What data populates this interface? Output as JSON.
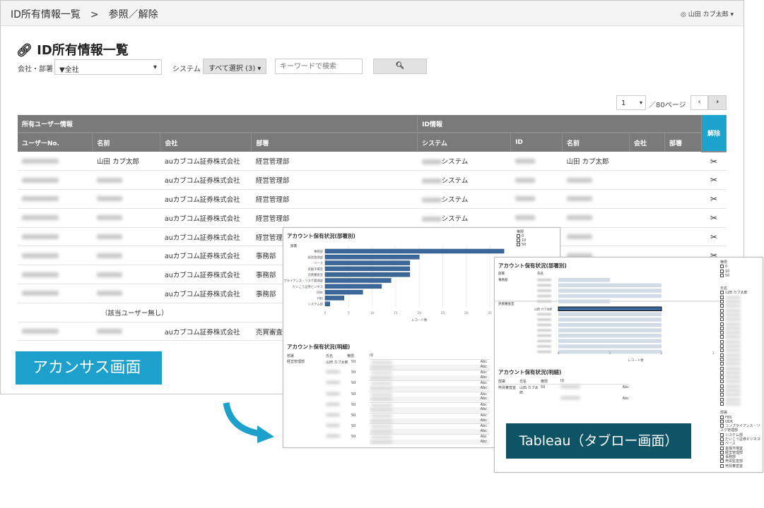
{
  "header": {
    "breadcrumb": [
      "ID所有情報一覧",
      ">",
      "参照／解除"
    ],
    "user": "山田 カブ太郎"
  },
  "page": {
    "title": "ID所有情報一覧"
  },
  "filters": {
    "company_label": "会社・部署",
    "company_value": "▼全社",
    "system_label": "システム",
    "system_value": "すべて選択 (3)",
    "keyword_placeholder": "キーワードで検索"
  },
  "pagination": {
    "page": "1",
    "total": "／80ページ"
  },
  "table": {
    "group_headers": [
      "所有ユーザー情報",
      "ID情報"
    ],
    "delete_header": "解除",
    "columns": [
      "ユーザーNo.",
      "名前",
      "会社",
      "部署",
      "システム",
      "ID",
      "名前",
      "会社",
      "部署"
    ],
    "rows": [
      {
        "name": "山田 カブ太郎",
        "company": "auカブコム証券株式会社",
        "dept": "経営管理部",
        "system": "システム",
        "id_name": "山田 カブ太郎"
      },
      {
        "name": "",
        "company": "auカブコム証券株式会社",
        "dept": "経営管理部",
        "system": "システム",
        "id_name": ""
      },
      {
        "name": "",
        "company": "auカブコム証券株式会社",
        "dept": "経営管理部",
        "system": "システム",
        "id_name": ""
      },
      {
        "name": "",
        "company": "auカブコム証券株式会社",
        "dept": "経営管理部",
        "system": "システム",
        "id_name": ""
      },
      {
        "name": "",
        "company": "auカブコム証券株式会社",
        "dept": "経営管理部",
        "system": "",
        "id_name": ""
      },
      {
        "name": "",
        "company": "auカブコム証券株式会社",
        "dept": "事務部",
        "system": "",
        "id_name": ""
      },
      {
        "name": "",
        "company": "auカブコム証券株式会社",
        "dept": "事務部",
        "system": "",
        "id_name": ""
      },
      {
        "name": "",
        "company": "auカブコム証券株式会社",
        "dept": "事務部",
        "system": "",
        "id_name": ""
      },
      {
        "empty": "（該当ユーザー無し）"
      },
      {
        "name": "",
        "company": "auカブコム証券株式会社",
        "dept": "売買審査室",
        "system": "",
        "id_name": ""
      }
    ]
  },
  "labels": {
    "acanthus": "アカンサス画面",
    "tableau": "Tableau（タブロー画面）"
  },
  "colors": {
    "accent": "#1da1cc",
    "tableau_label": "#0f5366",
    "bar": "#3a689a",
    "bar_light": "#d2dbe6"
  },
  "tableau1": {
    "chart_title": "アカウント保有状況(部署別)",
    "detail_title": "アカウント保有状況(明細)",
    "detail_headers": [
      "部署",
      "氏名",
      "権限",
      "ID"
    ],
    "detail_dept": "経営管理部",
    "detail_name": "山田 カブ太郎",
    "detail_role": "50",
    "detail_value": "Abc",
    "legend_title": "権限",
    "legend": [
      "0",
      "10",
      "50"
    ]
  },
  "tableau2": {
    "chart_title": "アカウント保有状況(部署別)",
    "headers": [
      "部署",
      "氏名"
    ],
    "groups": [
      "事務部",
      "売買審査室"
    ],
    "selected_name": "山田 カブ太郎",
    "detail_title": "アカウント保有状況(明細)",
    "detail_headers": [
      "部署",
      "氏名",
      "権限",
      "ID"
    ],
    "detail_row": [
      "売買審査室",
      "山田 カブ太郎",
      "50"
    ],
    "detail_value": "Abc",
    "filter_role_title": "権限",
    "filter_role": [
      "0",
      "10",
      "50"
    ],
    "filter_name_title": "氏名",
    "filter_name_first": "山田 カブ太郎",
    "filter_dept_title": "部署",
    "filter_dept": [
      "FBS",
      "ODK",
      "コンプライアンス・リスク管理部",
      "システム部",
      "だいこう証券ビジネス",
      "ベース",
      "金融市場室",
      "経営管理部",
      "事務部",
      "売買監査部",
      "売買審査室"
    ]
  },
  "chart_data": [
    {
      "type": "bar",
      "orientation": "horizontal",
      "title": "アカウント保有状況(部署別)",
      "ylabel": "部署",
      "xlabel": "レコード数",
      "categories": [
        "事務部",
        "経営管理部",
        "ベース",
        "金融市場室",
        "売買審査室",
        "コンプライアンス・リスク管理部",
        "だいこう証券ビジネス",
        "ODK",
        "FBS",
        "システム部"
      ],
      "values": [
        38,
        20,
        18,
        18,
        18,
        14,
        12,
        8,
        4,
        1
      ],
      "xlim": [
        0,
        38
      ],
      "xticks": [
        0,
        5,
        10,
        15,
        20,
        25,
        30,
        35
      ],
      "grid": true
    },
    {
      "type": "bar",
      "orientation": "horizontal",
      "title": "アカウント保有状況(部署別)",
      "xlabel": "レコード数",
      "groups": [
        "事務部",
        "事務部",
        "事務部",
        "事務部",
        "事務部",
        "売買審査室",
        "売買審査室",
        "売買審査室",
        "売買審査室",
        "売買審査室",
        "売買審査室",
        "売買審査室",
        "売買審査室",
        "売買審査室"
      ],
      "values": [
        1,
        2,
        2,
        2,
        1,
        2,
        2,
        2,
        2,
        2,
        2,
        2,
        2,
        2
      ],
      "selected_index": 5,
      "xlim": [
        0,
        3
      ],
      "xticks": [
        0,
        1,
        2,
        3
      ]
    }
  ]
}
